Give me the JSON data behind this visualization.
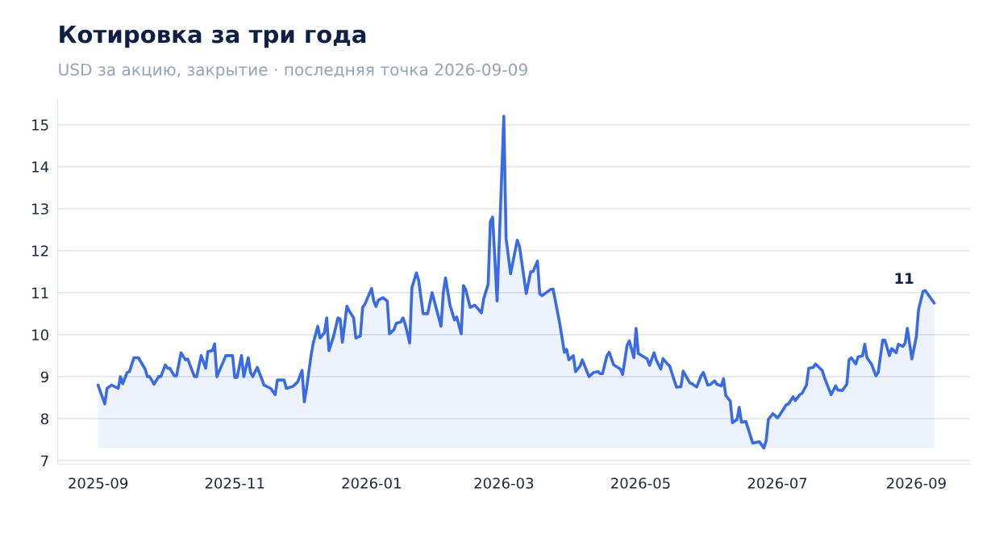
{
  "chart_data": {
    "type": "area",
    "title": "Котировка за три года",
    "subtitle": "USD за акцию, закрытие · последняя точка 2026-09-09",
    "x": [
      "2025-09-01",
      "2025-09-04",
      "2025-09-05",
      "2025-09-07",
      "2025-09-10",
      "2025-09-11",
      "2025-09-12",
      "2025-09-14",
      "2025-09-15",
      "2025-09-17",
      "2025-09-19",
      "2025-09-22",
      "2025-09-23",
      "2025-09-24",
      "2025-09-26",
      "2025-09-28",
      "2025-09-29",
      "2025-10-01",
      "2025-10-02",
      "2025-10-03",
      "2025-10-05",
      "2025-10-06",
      "2025-10-08",
      "2025-10-10",
      "2025-10-11",
      "2025-10-14",
      "2025-10-15",
      "2025-10-17",
      "2025-10-19",
      "2025-10-20",
      "2025-10-22",
      "2025-10-23",
      "2025-10-24",
      "2025-10-26",
      "2025-10-28",
      "2025-10-31",
      "2025-11-01",
      "2025-11-02",
      "2025-11-04",
      "2025-11-05",
      "2025-11-07",
      "2025-11-08",
      "2025-11-09",
      "2025-11-11",
      "2025-11-13",
      "2025-11-14",
      "2025-11-17",
      "2025-11-19",
      "2025-11-20",
      "2025-11-23",
      "2025-11-24",
      "2025-11-27",
      "2025-11-29",
      "2025-12-01",
      "2025-12-02",
      "2025-12-03",
      "2025-12-05",
      "2025-12-06",
      "2025-12-08",
      "2025-12-09",
      "2025-12-11",
      "2025-12-12",
      "2025-12-13",
      "2025-12-15",
      "2025-12-17",
      "2025-12-18",
      "2025-12-19",
      "2025-12-21",
      "2025-12-22",
      "2025-12-24",
      "2025-12-25",
      "2025-12-27",
      "2025-12-28",
      "2025-12-29",
      "2026-01-01",
      "2026-01-02",
      "2026-01-03",
      "2026-01-04",
      "2026-01-06",
      "2026-01-08",
      "2026-01-09",
      "2026-01-11",
      "2026-01-12",
      "2026-01-14",
      "2026-01-15",
      "2026-01-16",
      "2026-01-18",
      "2026-01-19",
      "2026-01-21",
      "2026-01-22",
      "2026-01-24",
      "2026-01-26",
      "2026-01-28",
      "2026-02-01",
      "2026-02-02",
      "2026-02-03",
      "2026-02-05",
      "2026-02-07",
      "2026-02-08",
      "2026-02-10",
      "2026-02-11",
      "2026-02-12",
      "2026-02-14",
      "2026-02-16",
      "2026-02-17",
      "2026-02-19",
      "2026-02-20",
      "2026-02-22",
      "2026-02-23",
      "2026-02-24",
      "2026-02-26",
      "2026-03-01",
      "2026-03-02",
      "2026-03-04",
      "2026-03-07",
      "2026-03-08",
      "2026-03-11",
      "2026-03-13",
      "2026-03-14",
      "2026-03-16",
      "2026-03-17",
      "2026-03-18",
      "2026-03-22",
      "2026-03-23",
      "2026-03-26",
      "2026-03-28",
      "2026-03-29",
      "2026-03-30",
      "2026-04-01",
      "2026-04-02",
      "2026-04-04",
      "2026-04-05",
      "2026-04-08",
      "2026-04-10",
      "2026-04-12",
      "2026-04-13",
      "2026-04-14",
      "2026-04-16",
      "2026-04-17",
      "2026-04-19",
      "2026-04-22",
      "2026-04-23",
      "2026-04-25",
      "2026-04-26",
      "2026-04-28",
      "2026-04-29",
      "2026-04-30",
      "2026-05-04",
      "2026-05-05",
      "2026-05-07",
      "2026-05-08",
      "2026-05-10",
      "2026-05-11",
      "2026-05-13",
      "2026-05-14",
      "2026-05-15",
      "2026-05-17",
      "2026-05-19",
      "2026-05-20",
      "2026-05-23",
      "2026-05-24",
      "2026-05-26",
      "2026-05-28",
      "2026-05-29",
      "2026-05-31",
      "2026-06-01",
      "2026-06-03",
      "2026-06-04",
      "2026-06-06",
      "2026-06-07",
      "2026-06-08",
      "2026-06-10",
      "2026-06-11",
      "2026-06-13",
      "2026-06-14",
      "2026-06-15",
      "2026-06-17",
      "2026-06-20",
      "2026-06-23",
      "2026-06-25",
      "2026-06-26",
      "2026-06-27",
      "2026-06-29",
      "2026-07-01",
      "2026-07-02",
      "2026-07-05",
      "2026-07-06",
      "2026-07-08",
      "2026-07-09",
      "2026-07-11",
      "2026-07-12",
      "2026-07-14",
      "2026-07-15",
      "2026-07-17",
      "2026-07-18",
      "2026-07-20",
      "2026-07-21",
      "2026-07-22",
      "2026-07-25",
      "2026-07-27",
      "2026-07-28",
      "2026-07-30",
      "2026-08-01",
      "2026-08-02",
      "2026-08-03",
      "2026-08-05",
      "2026-08-06",
      "2026-08-08",
      "2026-08-09",
      "2026-08-10",
      "2026-08-12",
      "2026-08-14",
      "2026-08-15",
      "2026-08-17",
      "2026-08-18",
      "2026-08-20",
      "2026-08-21",
      "2026-08-23",
      "2026-08-24",
      "2026-08-26",
      "2026-08-27",
      "2026-08-28",
      "2026-08-30",
      "2026-09-01",
      "2026-09-02",
      "2026-09-04",
      "2026-09-05",
      "2026-09-09"
    ],
    "series": [
      {
        "color": "#3b6be3",
        "values": [
          8.8,
          8.35,
          8.72,
          8.8,
          8.72,
          9.0,
          8.83,
          9.1,
          9.12,
          9.45,
          9.45,
          9.18,
          9.0,
          9.0,
          8.82,
          9.0,
          9.0,
          9.28,
          9.2,
          9.2,
          9.02,
          9.02,
          9.57,
          9.4,
          9.42,
          9.0,
          9.0,
          9.5,
          9.2,
          9.6,
          9.62,
          9.78,
          9.0,
          9.25,
          9.5,
          9.5,
          8.98,
          8.98,
          9.5,
          9.0,
          9.45,
          9.1,
          9.0,
          9.22,
          8.95,
          8.8,
          8.72,
          8.57,
          8.92,
          8.92,
          8.72,
          8.77,
          8.87,
          9.15,
          8.4,
          8.72,
          9.5,
          9.8,
          10.2,
          9.92,
          10.05,
          10.4,
          9.62,
          9.95,
          10.4,
          10.37,
          9.82,
          10.68,
          10.57,
          10.4,
          9.92,
          9.97,
          10.65,
          10.72,
          11.1,
          10.8,
          10.67,
          10.82,
          10.88,
          10.8,
          10.02,
          10.12,
          10.27,
          10.3,
          10.4,
          10.25,
          9.8,
          11.12,
          11.47,
          11.3,
          10.5,
          10.5,
          11.0,
          10.2,
          11.0,
          11.35,
          10.7,
          10.35,
          10.42,
          10.02,
          11.17,
          11.07,
          10.65,
          10.7,
          10.65,
          10.52,
          10.85,
          11.2,
          12.7,
          12.8,
          10.8,
          15.2,
          12.3,
          11.45,
          12.25,
          12.1,
          10.98,
          11.5,
          11.5,
          11.75,
          10.98,
          10.93,
          11.08,
          11.08,
          10.25,
          9.58,
          9.65,
          9.4,
          9.5,
          9.12,
          9.25,
          9.4,
          9.0,
          9.1,
          9.12,
          9.07,
          9.07,
          9.5,
          9.58,
          9.28,
          9.18,
          9.05,
          9.75,
          9.85,
          9.45,
          10.15,
          9.55,
          9.42,
          9.27,
          9.57,
          9.4,
          9.18,
          9.43,
          9.3,
          9.25,
          9.08,
          8.75,
          8.76,
          9.13,
          8.85,
          8.83,
          8.75,
          9.02,
          9.1,
          8.8,
          8.81,
          8.9,
          8.82,
          8.78,
          8.95,
          8.55,
          8.42,
          7.9,
          7.98,
          8.27,
          7.92,
          7.93,
          7.42,
          7.45,
          7.3,
          7.47,
          7.98,
          8.12,
          8.02,
          8.08,
          8.33,
          8.35,
          8.52,
          8.43,
          8.57,
          8.6,
          8.8,
          9.2,
          9.22,
          9.3,
          9.2,
          9.15,
          8.98,
          8.57,
          8.78,
          8.68,
          8.67,
          8.82,
          9.4,
          9.45,
          9.3,
          9.47,
          9.5,
          9.77,
          9.45,
          9.3,
          9.02,
          9.1,
          9.87,
          9.87,
          9.5,
          9.67,
          9.57,
          9.77,
          9.72,
          9.8,
          10.15,
          9.42,
          9.95,
          10.6,
          11.03,
          11.05,
          10.75
        ]
      }
    ],
    "xlim": [
      "2025-08-14",
      "2026-09-25"
    ],
    "xticks": [
      {
        "value": "2025-09-01",
        "label": "2025-09"
      },
      {
        "value": "2025-11-01",
        "label": "2025-11"
      },
      {
        "value": "2026-01-01",
        "label": "2026-01"
      },
      {
        "value": "2026-03-01",
        "label": "2026-03"
      },
      {
        "value": "2026-05-01",
        "label": "2026-05"
      },
      {
        "value": "2026-07-01",
        "label": "2026-07"
      },
      {
        "value": "2026-09-01",
        "label": "2026-09"
      }
    ],
    "ylim": [
      6.92,
      15.6
    ],
    "yticks": [
      7,
      8,
      9,
      10,
      11,
      12,
      13,
      14,
      15
    ],
    "grid": "y",
    "legend": false,
    "line_style": "solid",
    "marker": "none",
    "annotations": [
      {
        "text": "11",
        "x": "2026-09-09",
        "y": 10.75
      }
    ]
  }
}
